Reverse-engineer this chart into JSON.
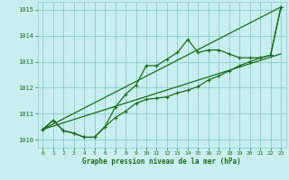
{
  "lines": [
    {
      "x": [
        0,
        1,
        2,
        3,
        4,
        5,
        6,
        7,
        8,
        9,
        10,
        11,
        12,
        13,
        14,
        15,
        16,
        17,
        18,
        19,
        20,
        21,
        22,
        23
      ],
      "y": [
        1010.4,
        1010.75,
        1010.35,
        1010.25,
        1010.1,
        1010.1,
        1010.5,
        1010.85,
        1011.1,
        1011.4,
        1011.55,
        1011.6,
        1011.65,
        1011.8,
        1011.9,
        1012.05,
        1012.3,
        1012.45,
        1012.65,
        1012.85,
        1013.0,
        1013.15,
        1013.25,
        1015.1
      ],
      "marker": true,
      "linewidth": 0.9
    },
    {
      "x": [
        0,
        1,
        2,
        3,
        4,
        5,
        6,
        7,
        8,
        9,
        10,
        11,
        12,
        13,
        14,
        15,
        16,
        17,
        18,
        19,
        20,
        21,
        22,
        23
      ],
      "y": [
        1010.4,
        1010.75,
        1010.35,
        1010.25,
        1010.1,
        1010.1,
        1010.5,
        1011.25,
        1011.75,
        1012.1,
        1012.85,
        1012.85,
        1013.1,
        1013.35,
        1013.85,
        1013.35,
        1013.45,
        1013.45,
        1013.3,
        1013.15,
        1013.15,
        1013.15,
        1013.25,
        1015.1
      ],
      "marker": true,
      "linewidth": 0.9
    },
    {
      "x": [
        0,
        23
      ],
      "y": [
        1010.4,
        1013.3
      ],
      "marker": false,
      "linewidth": 0.9
    },
    {
      "x": [
        0,
        23
      ],
      "y": [
        1010.4,
        1015.1
      ],
      "marker": false,
      "linewidth": 0.9
    }
  ],
  "xlim": [
    -0.5,
    23.5
  ],
  "ylim": [
    1009.7,
    1015.3
  ],
  "yticks": [
    1010,
    1011,
    1012,
    1013,
    1014,
    1015
  ],
  "xticks": [
    0,
    1,
    2,
    3,
    4,
    5,
    6,
    7,
    8,
    9,
    10,
    11,
    12,
    13,
    14,
    15,
    16,
    17,
    18,
    19,
    20,
    21,
    22,
    23
  ],
  "xlabel": "Graphe pression niveau de la mer (hPa)",
  "bg_color": "#c8eef0",
  "grid_color": "#88cccc",
  "line_color": "#1a6b1a",
  "tick_color": "#1a6b1a",
  "marker_style": "+",
  "markersize": 3.5
}
